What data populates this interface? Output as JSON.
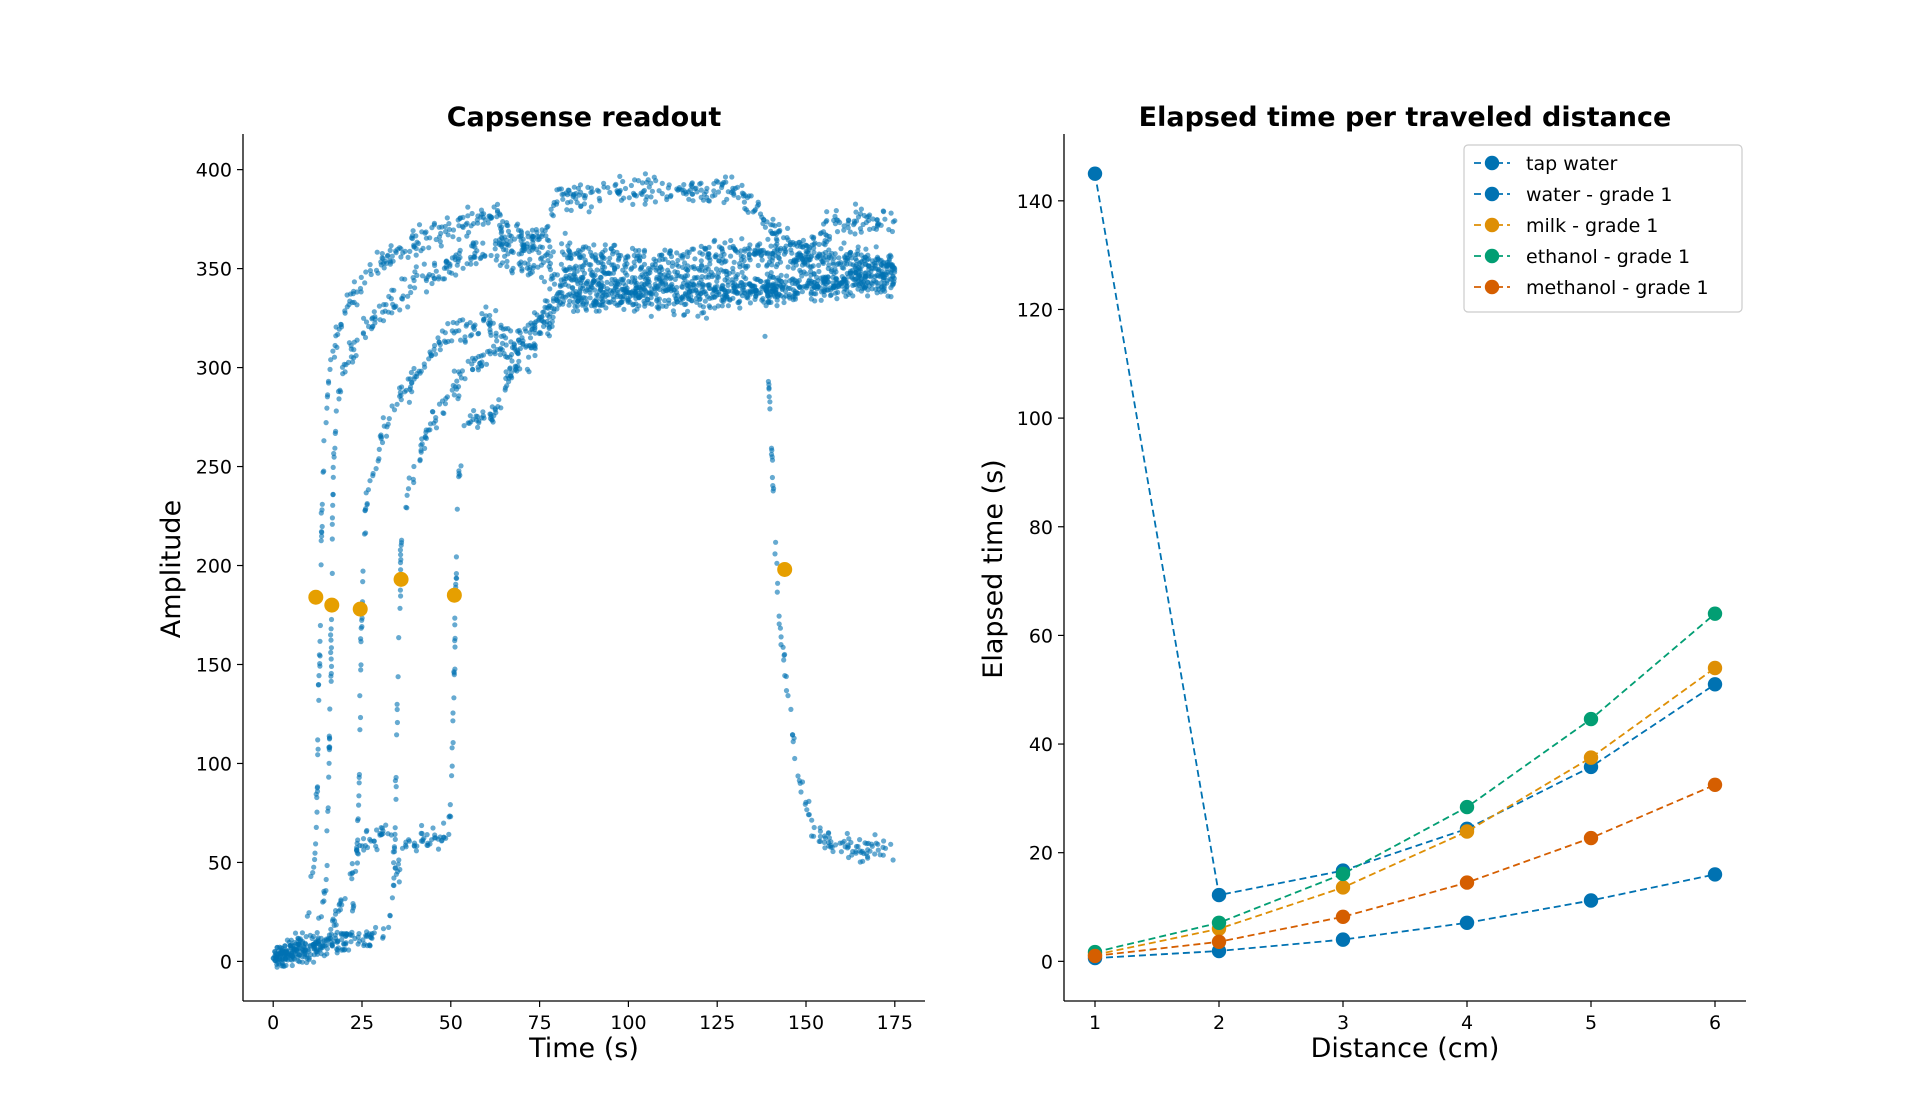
{
  "chart_data": [
    {
      "type": "scatter",
      "title": "Capsense readout",
      "xlabel": "Time (s)",
      "ylabel": "Amplitude",
      "xlim": [
        -8.5,
        183.5
      ],
      "ylim": [
        -20,
        418
      ],
      "xticks": [
        0,
        25,
        50,
        75,
        100,
        125,
        150,
        175
      ],
      "yticks": [
        0,
        50,
        100,
        150,
        200,
        250,
        300,
        350,
        400
      ],
      "grid": false,
      "colors": {
        "scatter": "#0072b2",
        "markers": "#e69f00"
      },
      "series": [
        {
          "kind": "dense-scatter",
          "tracks": [
            {
              "points": [
                [
                  0,
                  3
                ],
                [
                  5,
                  6
                ],
                [
                  9,
                  12
                ],
                [
                  12,
                  60
                ],
                [
                  13,
                  150
                ],
                [
                  14,
                  250
                ],
                [
                  16,
                  300
                ],
                [
                  20,
                  330
                ],
                [
                  26,
                  345
                ],
                [
                  33,
                  356
                ],
                [
                  40,
                  364
                ],
                [
                  48,
                  370
                ],
                [
                  55,
                  374
                ],
                [
                  62,
                  377
                ],
                [
                  66,
                  370
                ],
                [
                  72,
                  364
                ],
                [
                  78,
                  360
                ],
                [
                  90,
                  356
                ],
                [
                  110,
                  356
                ],
                [
                  130,
                  358
                ],
                [
                  150,
                  356
                ],
                [
                  175,
                  352
                ]
              ]
            },
            {
              "points": [
                [
                  0,
                  3
                ],
                [
                  10,
                  5
                ],
                [
                  12,
                  10
                ],
                [
                  15,
                  40
                ],
                [
                  16,
                  120
                ],
                [
                  17,
                  250
                ],
                [
                  18,
                  280
                ],
                [
                  20,
                  300
                ],
                [
                  26,
                  320
                ],
                [
                  32,
                  330
                ],
                [
                  40,
                  342
                ],
                [
                  50,
                  352
                ],
                [
                  56,
                  358
                ],
                [
                  62,
                  360
                ],
                [
                  70,
                  352
                ],
                [
                  78,
                  350
                ],
                [
                  95,
                  342
                ],
                [
                  120,
                  340
                ],
                [
                  140,
                  340
                ],
                [
                  160,
                  345
                ],
                [
                  175,
                  348
                ]
              ]
            },
            {
              "points": [
                [
                  0,
                  2
                ],
                [
                  10,
                  6
                ],
                [
                  16,
                  10
                ],
                [
                  22,
                  11
                ],
                [
                  24,
                  70
                ],
                [
                  25,
                  180
                ],
                [
                  26,
                  230
                ],
                [
                  30,
                  262
                ],
                [
                  36,
                  285
                ],
                [
                  44,
                  306
                ],
                [
                  52,
                  320
                ],
                [
                  60,
                  325
                ],
                [
                  64,
                  318
                ],
                [
                  70,
                  312
                ],
                [
                  74,
                  320
                ],
                [
                  80,
                  335
                ],
                [
                  95,
                  338
                ],
                [
                  115,
                  337
                ],
                [
                  135,
                  340
                ],
                [
                  155,
                  342
                ],
                [
                  175,
                  345
                ]
              ]
            },
            {
              "points": [
                [
                  0,
                  2
                ],
                [
                  15,
                  8
                ],
                [
                  24,
                  11
                ],
                [
                  32,
                  12
                ],
                [
                  34,
                  40
                ],
                [
                  35,
                  130
                ],
                [
                  36,
                  210
                ],
                [
                  38,
                  238
                ],
                [
                  42,
                  262
                ],
                [
                  48,
                  283
                ],
                [
                  54,
                  298
                ],
                [
                  60,
                  304
                ],
                [
                  63,
                  312
                ],
                [
                  67,
                  304
                ],
                [
                  72,
                  320
                ],
                [
                  78,
                  332
                ],
                [
                  95,
                  336
                ],
                [
                  115,
                  332
                ],
                [
                  135,
                  338
                ],
                [
                  155,
                  340
                ],
                [
                  175,
                  342
                ]
              ]
            },
            {
              "points": [
                [
                  0,
                  2
                ],
                [
                  15,
                  10
                ],
                [
                  25,
                  60
                ],
                [
                  33,
                  66
                ],
                [
                  35,
                  40
                ],
                [
                  37,
                  60
                ],
                [
                  44,
                  62
                ],
                [
                  49,
                  62
                ],
                [
                  50,
                  72
                ],
                [
                  51,
                  150
                ],
                [
                  52,
                  240
                ],
                [
                  54,
                  272
                ],
                [
                  62,
                  276
                ],
                [
                  66,
                  296
                ],
                [
                  72,
                  305
                ],
                [
                  78,
                  322
                ],
                [
                  82,
                  345
                ],
                [
                  95,
                  348
                ],
                [
                  110,
                  348
                ],
                [
                  125,
                  346
                ],
                [
                  135,
                  358
                ],
                [
                  155,
                  356
                ],
                [
                  175,
                  350
                ]
              ]
            },
            {
              "points": [
                [
                  62,
                  365
                ],
                [
                  68,
                  366
                ],
                [
                  75,
                  362
                ],
                [
                  80,
                  385
                ],
                [
                  95,
                  390
                ],
                [
                  110,
                  390
                ],
                [
                  125,
                  390
                ],
                [
                  132,
                  388
                ],
                [
                  140,
                  370
                ],
                [
                  150,
                  358
                ],
                [
                  153,
                  368
                ],
                [
                  160,
                  374
                ],
                [
                  175,
                  374
                ]
              ]
            },
            {
              "points": [
                [
                  138,
                  322
                ],
                [
                  140,
                  280
                ],
                [
                  141,
                  220
                ],
                [
                  143,
                  160
                ],
                [
                  146,
                  120
                ],
                [
                  148,
                  95
                ],
                [
                  150,
                  80
                ],
                [
                  152,
                  65
                ],
                [
                  160,
                  58
                ],
                [
                  175,
                  56
                ]
              ]
            }
          ]
        }
      ],
      "highlight_points": [
        {
          "x": 12,
          "y": 184
        },
        {
          "x": 16.5,
          "y": 180
        },
        {
          "x": 24.5,
          "y": 178
        },
        {
          "x": 36,
          "y": 193
        },
        {
          "x": 51,
          "y": 185
        },
        {
          "x": 144,
          "y": 198
        }
      ]
    },
    {
      "type": "line",
      "title": "Elapsed time per traveled distance",
      "xlabel": "Distance (cm)",
      "ylabel": "Elapsed time (s)",
      "xlim": [
        0.75,
        6.25
      ],
      "ylim": [
        -7.3,
        152.3
      ],
      "xticks": [
        1,
        2,
        3,
        4,
        5,
        6
      ],
      "yticks": [
        0,
        20,
        40,
        60,
        80,
        100,
        120,
        140
      ],
      "grid": false,
      "legend_position": "top-right",
      "x": [
        1,
        2,
        3,
        4,
        5,
        6
      ],
      "series": [
        {
          "name": "tap water",
          "color": "#0072b2",
          "values": [
            145,
            12.2,
            16.7,
            24.4,
            35.8,
            51
          ]
        },
        {
          "name": "water - grade 1",
          "color": "#0072b2",
          "values": [
            0.6,
            1.9,
            4,
            7.1,
            11.2,
            16
          ]
        },
        {
          "name": "milk - grade 1",
          "color": "#de8f05",
          "values": [
            1.2,
            6,
            13.6,
            23.9,
            37.5,
            54
          ]
        },
        {
          "name": "ethanol - grade 1",
          "color": "#029e73",
          "values": [
            1.7,
            7.1,
            16.1,
            28.4,
            44.6,
            64
          ]
        },
        {
          "name": "methanol - grade 1",
          "color": "#d55e00",
          "values": [
            1,
            3.6,
            8.2,
            14.5,
            22.7,
            32.5
          ]
        }
      ]
    }
  ]
}
